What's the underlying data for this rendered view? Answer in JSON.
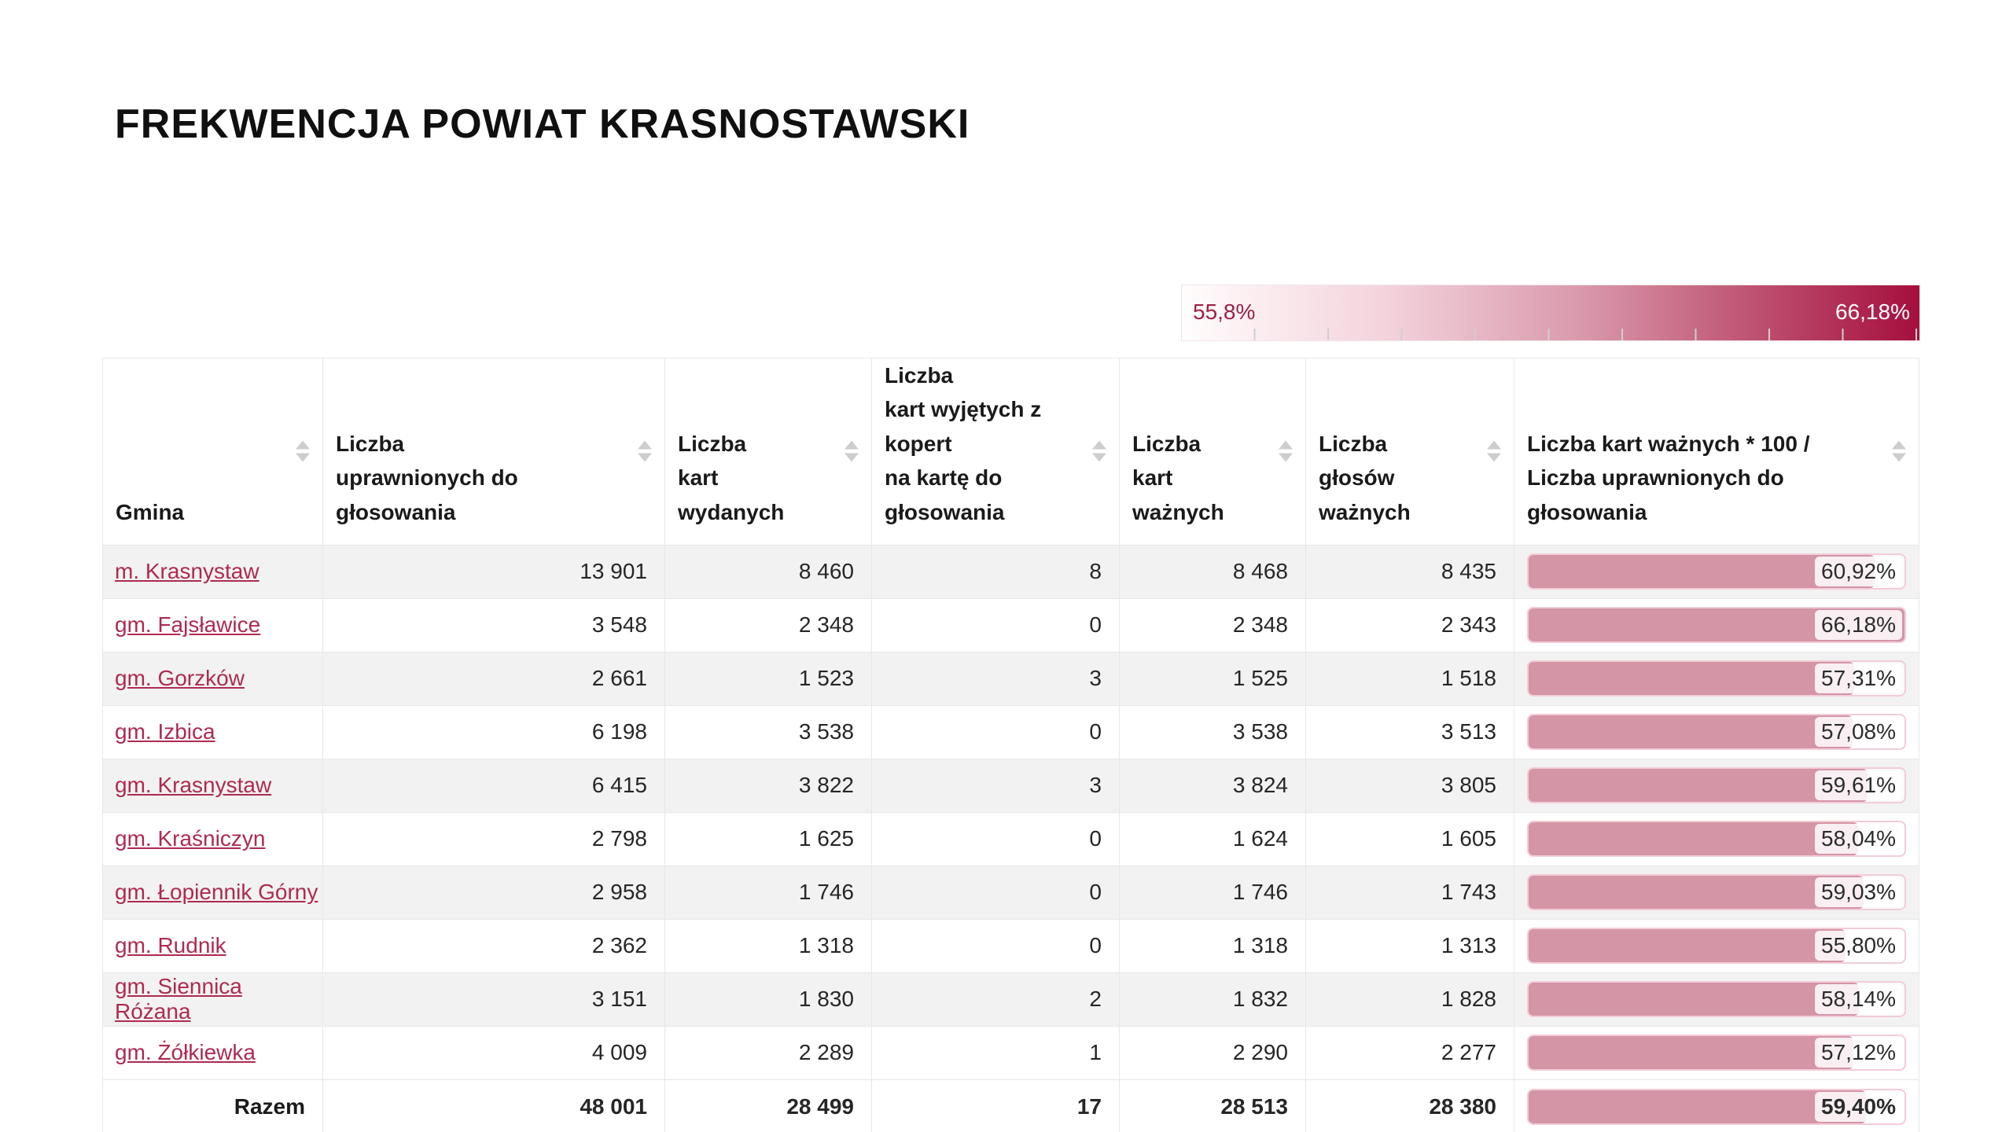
{
  "page": {
    "title": "FREKWENCJA POWIAT KRASNOSTAWSKI"
  },
  "colors": {
    "accent_link": "#ad2b50",
    "bar_fill": "#d495a6",
    "bar_track_border": "#f3ccd8",
    "gradient_start": "#fffdfd",
    "gradient_end": "#a50f3d",
    "row_stripe": "#f2f2f2"
  },
  "legend": {
    "min_label": "55,8%",
    "max_label": "66,18%",
    "min_value": 55.8,
    "max_value": 66.18
  },
  "table": {
    "columns": [
      {
        "label_lines": [
          "Gmina"
        ],
        "sortable": true
      },
      {
        "label_lines": [
          "Liczba",
          "uprawnionych do głosowania"
        ],
        "sortable": true
      },
      {
        "label_lines": [
          "Liczba",
          "kart wydanych"
        ],
        "sortable": true
      },
      {
        "label_lines": [
          "Liczba",
          "kart wyjętych z kopert",
          "na kartę do głosowania"
        ],
        "sortable": true
      },
      {
        "label_lines": [
          "Liczba",
          "kart ważnych"
        ],
        "sortable": true
      },
      {
        "label_lines": [
          "Liczba",
          "głosów ważnych"
        ],
        "sortable": true
      },
      {
        "label_lines": [
          "Liczba kart ważnych * 100 /",
          "Liczba uprawnionych do głosowania"
        ],
        "sortable": true
      }
    ],
    "rows": [
      {
        "gmina": "m. Krasnystaw",
        "uprawnieni": "13 901",
        "karty_wydane": "8 460",
        "karty_wyjete": "8",
        "karty_wazne": "8 468",
        "glosy_wazne": "8 435",
        "frekwencja_label": "60,92%",
        "frekwencja": 60.92
      },
      {
        "gmina": "gm. Fajsławice",
        "uprawnieni": "3 548",
        "karty_wydane": "2 348",
        "karty_wyjete": "0",
        "karty_wazne": "2 348",
        "glosy_wazne": "2 343",
        "frekwencja_label": "66,18%",
        "frekwencja": 66.18
      },
      {
        "gmina": "gm. Gorzków",
        "uprawnieni": "2 661",
        "karty_wydane": "1 523",
        "karty_wyjete": "3",
        "karty_wazne": "1 525",
        "glosy_wazne": "1 518",
        "frekwencja_label": "57,31%",
        "frekwencja": 57.31
      },
      {
        "gmina": "gm. Izbica",
        "uprawnieni": "6 198",
        "karty_wydane": "3 538",
        "karty_wyjete": "0",
        "karty_wazne": "3 538",
        "glosy_wazne": "3 513",
        "frekwencja_label": "57,08%",
        "frekwencja": 57.08
      },
      {
        "gmina": "gm. Krasnystaw",
        "uprawnieni": "6 415",
        "karty_wydane": "3 822",
        "karty_wyjete": "3",
        "karty_wazne": "3 824",
        "glosy_wazne": "3 805",
        "frekwencja_label": "59,61%",
        "frekwencja": 59.61
      },
      {
        "gmina": "gm. Kraśniczyn",
        "uprawnieni": "2 798",
        "karty_wydane": "1 625",
        "karty_wyjete": "0",
        "karty_wazne": "1 624",
        "glosy_wazne": "1 605",
        "frekwencja_label": "58,04%",
        "frekwencja": 58.04
      },
      {
        "gmina": "gm. Łopiennik Górny",
        "uprawnieni": "2 958",
        "karty_wydane": "1 746",
        "karty_wyjete": "0",
        "karty_wazne": "1 746",
        "glosy_wazne": "1 743",
        "frekwencja_label": "59,03%",
        "frekwencja": 59.03
      },
      {
        "gmina": "gm. Rudnik",
        "uprawnieni": "2 362",
        "karty_wydane": "1 318",
        "karty_wyjete": "0",
        "karty_wazne": "1 318",
        "glosy_wazne": "1 313",
        "frekwencja_label": "55,80%",
        "frekwencja": 55.8
      },
      {
        "gmina": "gm. Siennica Różana",
        "uprawnieni": "3 151",
        "karty_wydane": "1 830",
        "karty_wyjete": "2",
        "karty_wazne": "1 832",
        "glosy_wazne": "1 828",
        "frekwencja_label": "58,14%",
        "frekwencja": 58.14
      },
      {
        "gmina": "gm. Żółkiewka",
        "uprawnieni": "4 009",
        "karty_wydane": "2 289",
        "karty_wyjete": "1",
        "karty_wazne": "2 290",
        "glosy_wazne": "2 277",
        "frekwencja_label": "57,12%",
        "frekwencja": 57.12
      }
    ],
    "total": {
      "label": "Razem",
      "uprawnieni": "48 001",
      "karty_wydane": "28 499",
      "karty_wyjete": "17",
      "karty_wazne": "28 513",
      "glosy_wazne": "28 380",
      "frekwencja_label": "59,40%",
      "frekwencja": 59.4
    }
  }
}
